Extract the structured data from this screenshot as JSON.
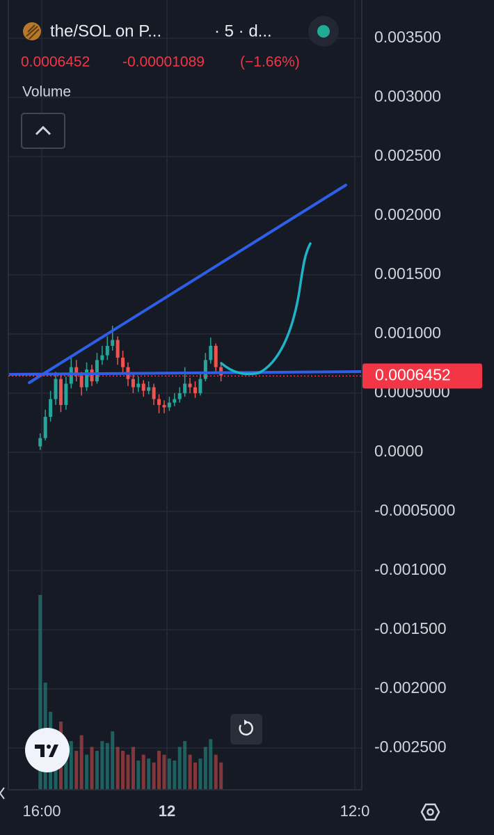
{
  "header": {
    "title": "the/SOL on P...",
    "interval": "· 5 · d...",
    "price": "0.0006452",
    "change": "-0.00001089",
    "change_percent": "(−1.66%)",
    "indicator": "Volume"
  },
  "chart_data": {
    "type": "candlestick",
    "x": [
      15.9,
      16.23,
      16.56,
      16.89,
      17.22,
      17.55,
      17.88,
      18.21,
      18.54,
      18.87,
      19.2,
      19.53,
      19.86,
      20.19,
      20.52,
      20.85,
      21.18,
      21.51,
      21.84,
      22.17,
      22.5,
      22.83,
      23.16,
      23.49,
      23.82,
      24.15,
      24.48,
      24.81,
      25.14,
      25.47,
      25.8,
      26.13,
      26.46,
      26.79,
      27.12,
      27.45
    ],
    "open": [
      5e-05,
      0.00012,
      0.0003,
      0.00045,
      0.00062,
      0.0004,
      0.00058,
      0.00072,
      0.00065,
      0.00055,
      0.0007,
      0.0006,
      0.00078,
      0.00082,
      0.0009,
      0.00095,
      0.0008,
      0.00072,
      0.00062,
      0.00055,
      0.00058,
      0.00052,
      0.00055,
      0.00045,
      0.0004,
      0.00038,
      0.00042,
      0.00045,
      0.0005,
      0.00058,
      0.00055,
      0.0005,
      0.00062,
      0.00078,
      0.0009,
      0.00072
    ],
    "high": [
      0.00016,
      0.00036,
      0.00052,
      0.00068,
      0.00066,
      0.00064,
      0.0008,
      0.00078,
      0.00068,
      0.00076,
      0.00074,
      0.00084,
      0.0009,
      0.00098,
      0.00107,
      0.00098,
      0.00086,
      0.00076,
      0.00066,
      0.00064,
      0.00061,
      0.0006,
      0.00058,
      0.00049,
      0.00044,
      0.00047,
      0.0005,
      0.00055,
      0.00072,
      0.00063,
      0.0006,
      0.00068,
      0.00084,
      0.00097,
      0.00092,
      0.00075
    ],
    "low": [
      2e-05,
      0.0001,
      0.00026,
      0.0004,
      0.00034,
      0.00036,
      0.00054,
      0.0006,
      0.00048,
      0.00052,
      0.00056,
      0.00058,
      0.00074,
      0.00078,
      0.00086,
      0.00074,
      0.00066,
      0.00056,
      0.0005,
      0.00051,
      0.00047,
      0.00049,
      0.0004,
      0.00033,
      0.00033,
      0.00035,
      0.00039,
      0.00042,
      0.00047,
      0.0005,
      0.00046,
      0.00048,
      0.0006,
      0.00075,
      0.00068,
      0.0006
    ],
    "close": [
      0.00012,
      0.0003,
      0.00045,
      0.00062,
      0.0004,
      0.00058,
      0.00072,
      0.00065,
      0.00055,
      0.0007,
      0.0006,
      0.00078,
      0.00082,
      0.0009,
      0.00095,
      0.0008,
      0.00072,
      0.00062,
      0.00055,
      0.00058,
      0.00052,
      0.00055,
      0.00045,
      0.0004,
      0.00038,
      0.00042,
      0.00045,
      0.0005,
      0.00058,
      0.00055,
      0.0005,
      0.00062,
      0.00078,
      0.0009,
      0.00072,
      0.00065
    ],
    "volume": [
      100,
      55,
      40,
      30,
      35,
      22,
      25,
      20,
      28,
      18,
      22,
      20,
      25,
      24,
      30,
      22,
      20,
      18,
      22,
      15,
      18,
      16,
      14,
      20,
      18,
      16,
      15,
      22,
      25,
      18,
      14,
      16,
      22,
      26,
      18,
      14
    ],
    "up_color": "#26a69a",
    "down_color": "#ef5350",
    "xlim": [
      13.333,
      36.444
    ],
    "xticks": [
      {
        "value": 16,
        "label": "16:00"
      },
      {
        "value": 24,
        "label": "12"
      },
      {
        "value": 36,
        "label": "12:0"
      }
    ],
    "ylim": [
      -0.002853,
      0.003824
    ],
    "yticks": [
      {
        "value": 0.0035,
        "label": "0.003500"
      },
      {
        "value": 0.003,
        "label": "0.003000"
      },
      {
        "value": 0.0025,
        "label": "0.002500"
      },
      {
        "value": 0.002,
        "label": "0.002000"
      },
      {
        "value": 0.0015,
        "label": "0.001500"
      },
      {
        "value": 0.001,
        "label": "0.001000"
      },
      {
        "value": 0.0005,
        "label": "0.0005000"
      },
      {
        "value": 0,
        "label": "0.0000"
      },
      {
        "value": -0.0005,
        "label": "-0.0005000"
      },
      {
        "value": -0.001,
        "label": "-0.001000"
      },
      {
        "value": -0.0015,
        "label": "-0.001500"
      },
      {
        "value": -0.002,
        "label": "-0.002000"
      },
      {
        "value": -0.0025,
        "label": "-0.002500"
      }
    ],
    "last_price": 0.0006452,
    "grid": true
  }
}
